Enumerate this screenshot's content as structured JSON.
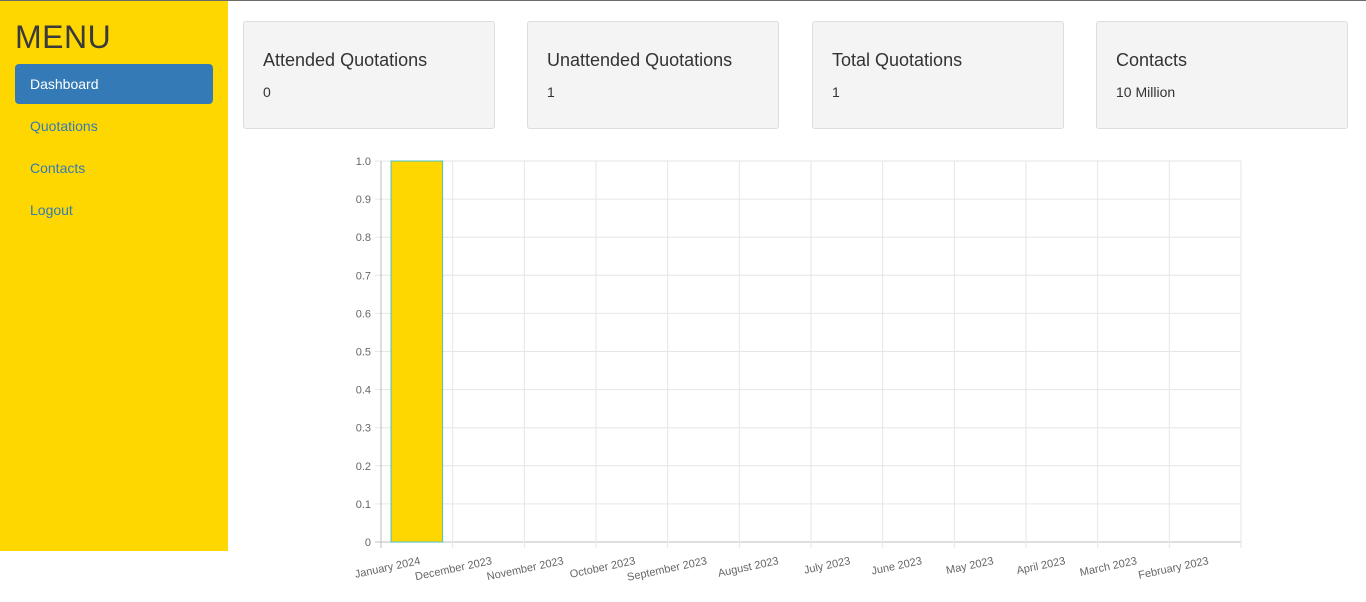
{
  "sidebar": {
    "title": "MENU",
    "items": [
      {
        "label": "Dashboard",
        "active": true
      },
      {
        "label": "Quotations",
        "active": false
      },
      {
        "label": "Contacts",
        "active": false
      },
      {
        "label": "Logout",
        "active": false
      }
    ]
  },
  "cards": [
    {
      "title": "Attended Quotations",
      "value": "0"
    },
    {
      "title": "Unattended Quotations",
      "value": "1"
    },
    {
      "title": "Total Quotations",
      "value": "1"
    },
    {
      "title": "Contacts",
      "value": "10 Million"
    }
  ],
  "colors": {
    "sidebar_bg": "#ffd700",
    "active_item": "#337ab7",
    "bar_fill": "#ffd700",
    "bar_border": "#4bc0c0"
  },
  "chart_data": {
    "type": "bar",
    "categories": [
      "January 2024",
      "December 2023",
      "November 2023",
      "October 2023",
      "September 2023",
      "August 2023",
      "July 2023",
      "June 2023",
      "May 2023",
      "April 2023",
      "March 2023",
      "February 2023"
    ],
    "values": [
      1,
      0,
      0,
      0,
      0,
      0,
      0,
      0,
      0,
      0,
      0,
      0
    ],
    "ylim": [
      0,
      1
    ],
    "yticks": [
      "0",
      "0.1",
      "0.2",
      "0.3",
      "0.4",
      "0.5",
      "0.6",
      "0.7",
      "0.8",
      "0.9",
      "1.0"
    ],
    "grid": true
  }
}
